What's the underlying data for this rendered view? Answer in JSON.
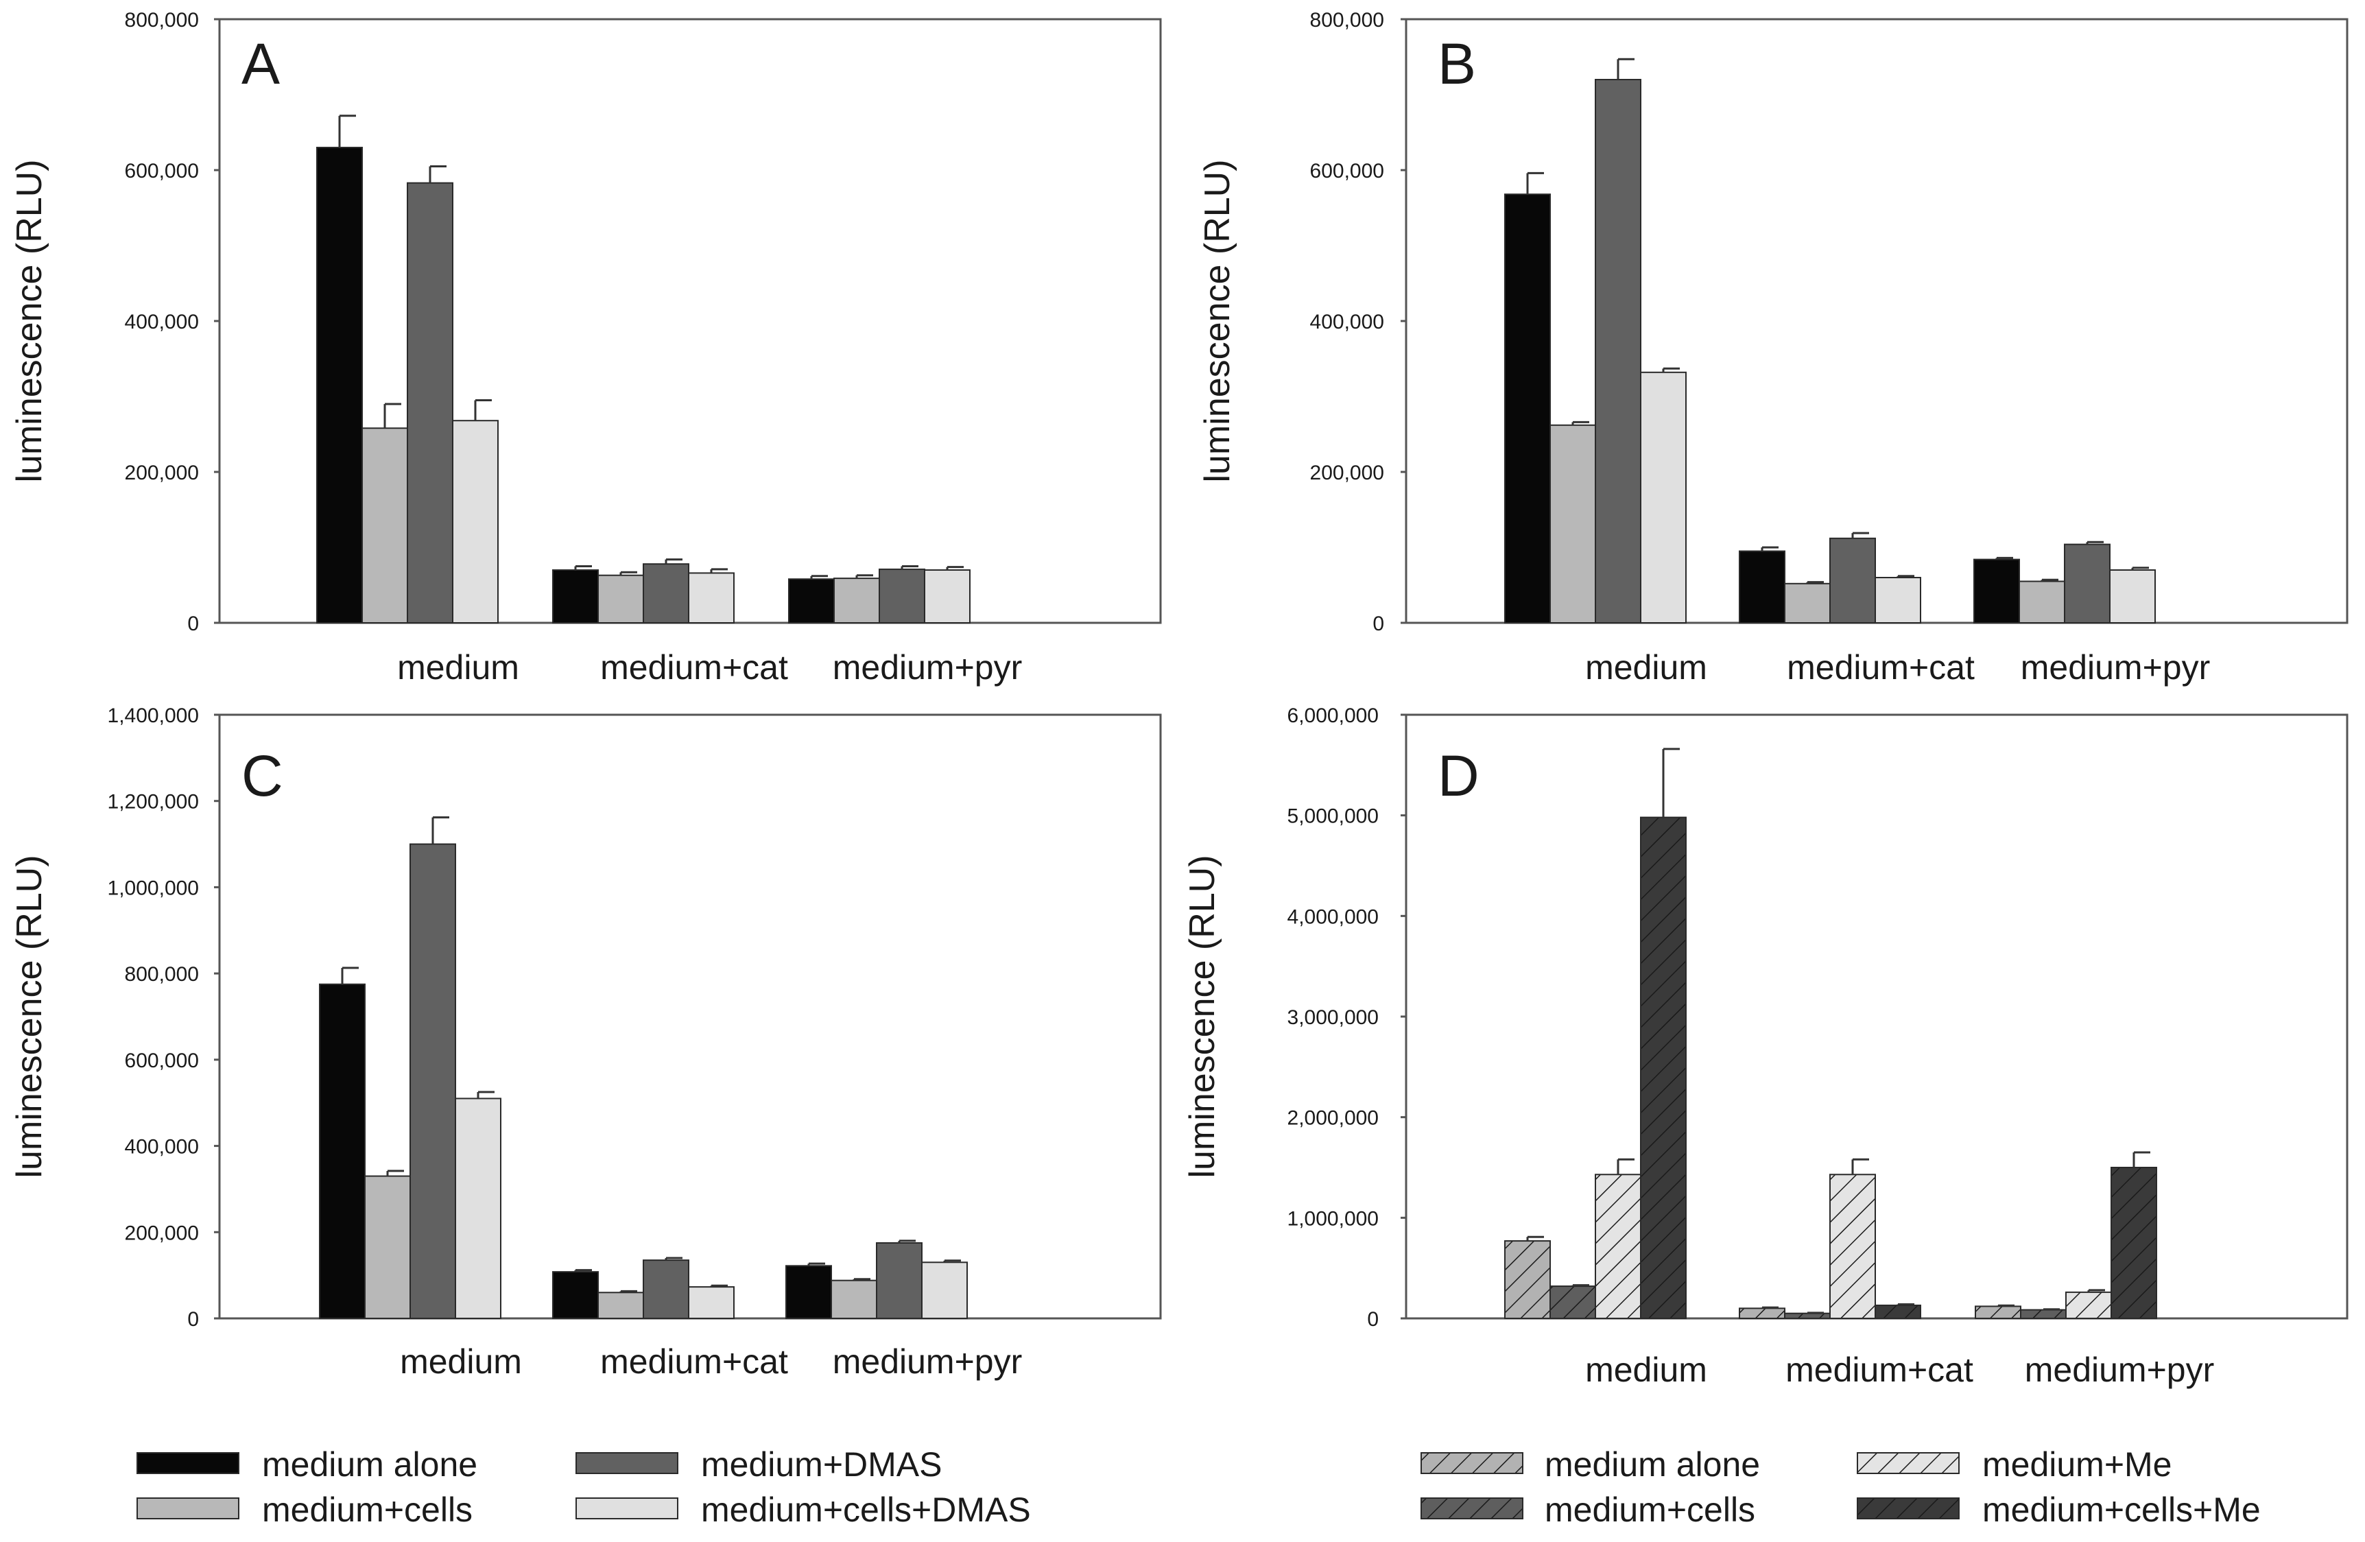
{
  "colors": {
    "medium_alone": "#080808",
    "medium_cells": "#b8b8b8",
    "medium_dmas": "#616161",
    "medium_cells_dmas": "#e0e0e0",
    "hatch_medium_alone": "#b2b2b2",
    "hatch_medium_cells": "#5e5e5e",
    "hatch_medium_me": "#e4e4e4",
    "hatch_medium_cells_me": "#3a3a3a",
    "axis": "#555555",
    "error_bar": "#333333"
  },
  "legends": {
    "left": {
      "items": [
        {
          "label": "medium alone",
          "color_key": "medium_alone",
          "hatched": false
        },
        {
          "label": "medium+DMAS",
          "color_key": "medium_dmas",
          "hatched": false
        },
        {
          "label": "medium+cells",
          "color_key": "medium_cells",
          "hatched": false
        },
        {
          "label": "medium+cells+DMAS",
          "color_key": "medium_cells_dmas",
          "hatched": false
        }
      ]
    },
    "right": {
      "items": [
        {
          "label": "medium alone",
          "color_key": "hatch_medium_alone",
          "hatched": true
        },
        {
          "label": "medium+Me",
          "color_key": "hatch_medium_me",
          "hatched": true
        },
        {
          "label": "medium+cells",
          "color_key": "hatch_medium_cells",
          "hatched": true
        },
        {
          "label": "medium+cells+Me",
          "color_key": "hatch_medium_cells_me",
          "hatched": true
        }
      ]
    }
  },
  "chart_data": [
    {
      "type": "bar",
      "panel": "A",
      "ylabel": "luminescence (RLU)",
      "ylim": [
        0,
        800000
      ],
      "yticks": [
        0,
        200000,
        400000,
        600000,
        800000
      ],
      "ytick_labels": [
        "0",
        "200,000",
        "400,000",
        "600,000",
        "800,000"
      ],
      "categories": [
        "medium",
        "medium+cat",
        "medium+pyr"
      ],
      "series": [
        {
          "name": "medium alone",
          "color_key": "medium_alone",
          "hatched": false,
          "values": [
            630000,
            70000,
            58000
          ],
          "errors": [
            42000,
            5000,
            4000
          ]
        },
        {
          "name": "medium+cells",
          "color_key": "medium_cells",
          "hatched": false,
          "values": [
            258000,
            63000,
            59000
          ],
          "errors": [
            32000,
            4000,
            4000
          ]
        },
        {
          "name": "medium+DMAS",
          "color_key": "medium_dmas",
          "hatched": false,
          "values": [
            583000,
            78000,
            71000
          ],
          "errors": [
            22000,
            6000,
            4000
          ]
        },
        {
          "name": "medium+cells+DMAS",
          "color_key": "medium_cells_dmas",
          "hatched": false,
          "values": [
            268000,
            66000,
            70000
          ],
          "errors": [
            27000,
            5000,
            4000
          ]
        }
      ]
    },
    {
      "type": "bar",
      "panel": "B",
      "ylabel": "luminescence (RLU)",
      "ylim": [
        0,
        800000
      ],
      "yticks": [
        0,
        200000,
        400000,
        600000,
        800000
      ],
      "ytick_labels": [
        "0",
        "200,000",
        "400,000",
        "600,000",
        "800,000"
      ],
      "categories": [
        "medium",
        "medium+cat",
        "medium+pyr"
      ],
      "series": [
        {
          "name": "medium alone",
          "color_key": "medium_alone",
          "hatched": false,
          "values": [
            568000,
            95000,
            84000
          ],
          "errors": [
            28000,
            5000,
            2000
          ]
        },
        {
          "name": "medium+cells",
          "color_key": "medium_cells",
          "hatched": false,
          "values": [
            262000,
            52000,
            55000
          ],
          "errors": [
            4000,
            2000,
            2000
          ]
        },
        {
          "name": "medium+DMAS",
          "color_key": "medium_dmas",
          "hatched": false,
          "values": [
            720000,
            112000,
            104000
          ],
          "errors": [
            27000,
            7000,
            3000
          ]
        },
        {
          "name": "medium+cells+DMAS",
          "color_key": "medium_cells_dmas",
          "hatched": false,
          "values": [
            332000,
            60000,
            70000
          ],
          "errors": [
            5000,
            2000,
            3000
          ]
        }
      ]
    },
    {
      "type": "bar",
      "panel": "C",
      "ylabel": "luminescence (RLU)",
      "ylim": [
        0,
        1400000
      ],
      "yticks": [
        0,
        200000,
        400000,
        600000,
        800000,
        1000000,
        1200000,
        1400000
      ],
      "ytick_labels": [
        "0",
        "200,000",
        "400,000",
        "600,000",
        "800,000",
        "1,000,000",
        "1,200,000",
        "1,400,000"
      ],
      "categories": [
        "medium",
        "medium+cat",
        "medium+pyr"
      ],
      "series": [
        {
          "name": "medium alone",
          "color_key": "medium_alone",
          "hatched": false,
          "values": [
            775000,
            108000,
            122000
          ],
          "errors": [
            38000,
            4000,
            5000
          ]
        },
        {
          "name": "medium+cells",
          "color_key": "medium_cells",
          "hatched": false,
          "values": [
            330000,
            60000,
            88000
          ],
          "errors": [
            12000,
            3000,
            3000
          ]
        },
        {
          "name": "medium+DMAS",
          "color_key": "medium_dmas",
          "hatched": false,
          "values": [
            1100000,
            135000,
            175000
          ],
          "errors": [
            62000,
            5000,
            5000
          ]
        },
        {
          "name": "medium+cells+DMAS",
          "color_key": "medium_cells_dmas",
          "hatched": false,
          "values": [
            510000,
            73000,
            130000
          ],
          "errors": [
            15000,
            3000,
            4000
          ]
        }
      ]
    },
    {
      "type": "bar",
      "panel": "D",
      "ylabel": "luminescence (RLU)",
      "ylim": [
        0,
        6000000
      ],
      "yticks": [
        0,
        1000000,
        2000000,
        3000000,
        4000000,
        5000000,
        6000000
      ],
      "ytick_labels": [
        "0",
        "1,000,000",
        "2,000,000",
        "3,000,000",
        "4,000,000",
        "5,000,000",
        "6,000,000"
      ],
      "categories": [
        "medium",
        "medium+cat",
        "medium+pyr"
      ],
      "series": [
        {
          "name": "medium alone",
          "color_key": "hatch_medium_alone",
          "hatched": true,
          "values": [
            770000,
            100000,
            120000
          ],
          "errors": [
            40000,
            8000,
            8000
          ]
        },
        {
          "name": "medium+cells",
          "color_key": "hatch_medium_cells",
          "hatched": true,
          "values": [
            320000,
            50000,
            85000
          ],
          "errors": [
            10000,
            5000,
            5000
          ]
        },
        {
          "name": "medium+Me",
          "color_key": "hatch_medium_me",
          "hatched": true,
          "values": [
            1430000,
            1430000,
            260000
          ],
          "errors": [
            150000,
            150000,
            20000
          ]
        },
        {
          "name": "medium+cells+Me",
          "color_key": "hatch_medium_cells_me",
          "hatched": true,
          "values": [
            4980000,
            130000,
            1500000
          ],
          "errors": [
            680000,
            10000,
            150000
          ]
        }
      ]
    }
  ]
}
